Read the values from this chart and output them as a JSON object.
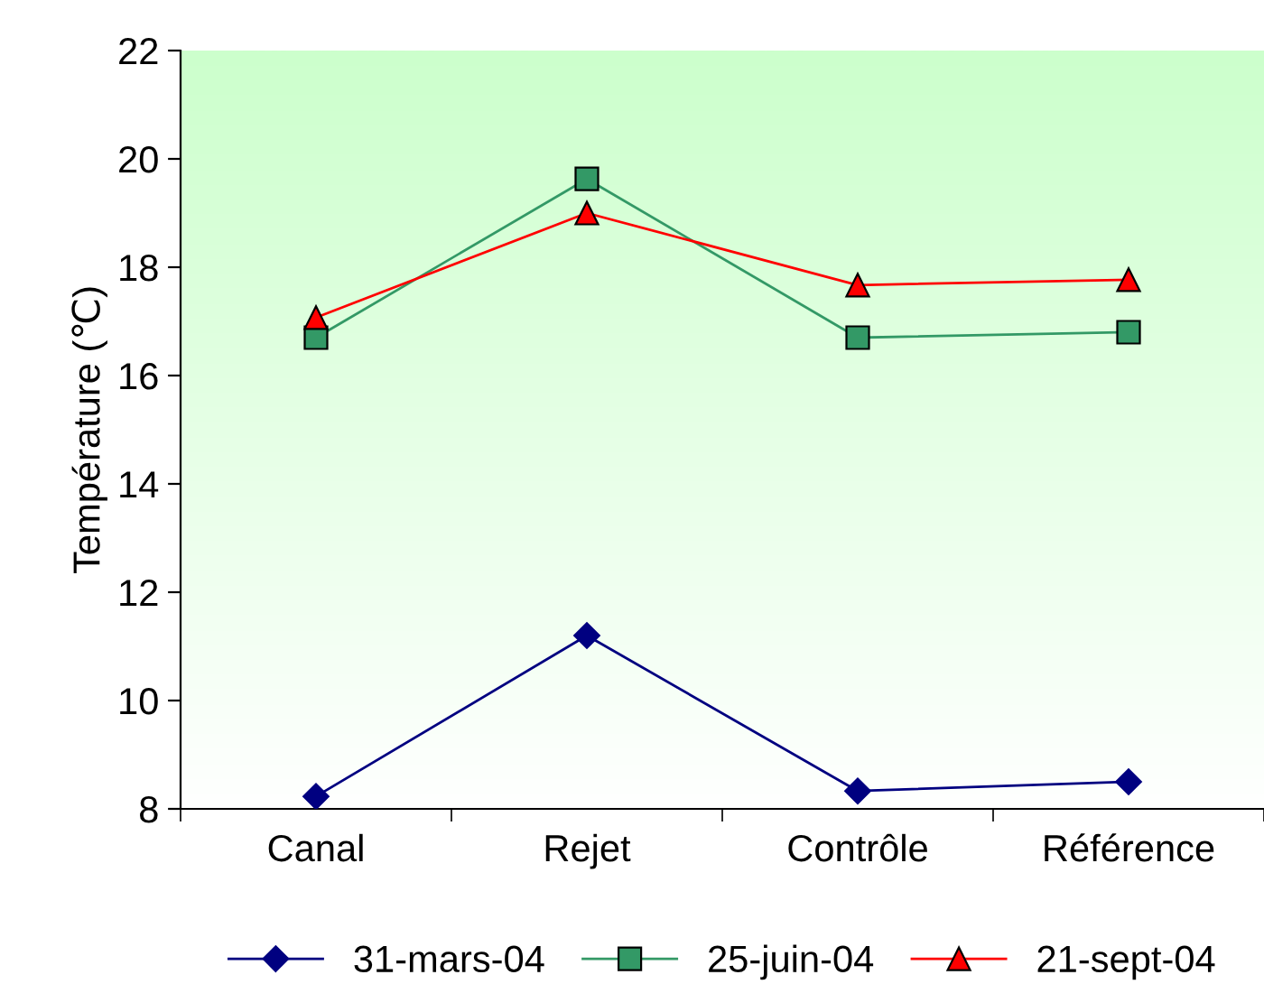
{
  "chart_data": {
    "type": "line",
    "ylabel": "Température (℃)",
    "categories": [
      "Canal",
      "Rejet",
      "Contrôle",
      "Référence"
    ],
    "series": [
      {
        "name": "31-mars-04",
        "color": "#000080",
        "values": [
          8.23,
          11.2,
          8.33,
          8.5
        ],
        "marker": "diamond"
      },
      {
        "name": "25-juin-04",
        "color": "#339966",
        "values": [
          16.7,
          19.63,
          16.7,
          16.8
        ],
        "marker": "square"
      },
      {
        "name": "21-sept-04",
        "color": "#ff0000",
        "values": [
          17.07,
          19.0,
          17.67,
          17.77
        ],
        "marker": "triangle"
      }
    ],
    "ylim": [
      8,
      22
    ],
    "yticks": [
      8,
      10,
      12,
      14,
      16,
      18,
      20,
      22
    ],
    "grid": false,
    "legend": "bottom"
  }
}
